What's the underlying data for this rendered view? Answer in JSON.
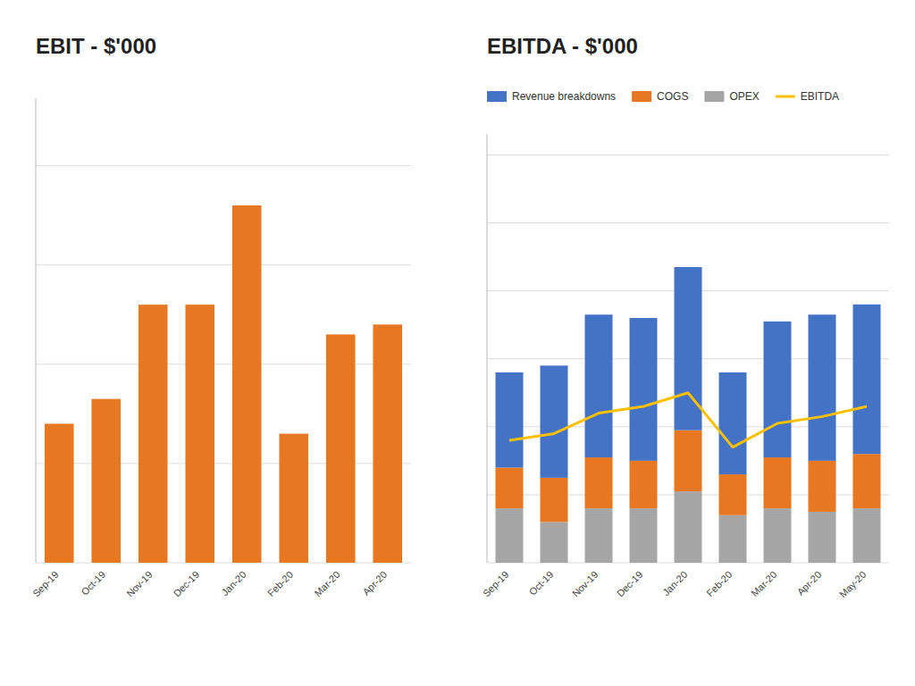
{
  "chart_data": [
    {
      "type": "bar",
      "title": "EBIT - $'000",
      "categories": [
        "Sep-19",
        "Oct-19",
        "Nov-19",
        "Dec-19",
        "Jan-20",
        "Feb-20",
        "Mar-20",
        "Apr-20"
      ],
      "values": [
        28,
        33,
        52,
        52,
        72,
        26,
        46,
        48
      ],
      "color": "#E87722",
      "ylim": [
        0,
        93.6
      ],
      "yticks": [
        0,
        20,
        40,
        60,
        80
      ],
      "grid": true,
      "tick_labels": "x"
    },
    {
      "type": "bar",
      "title": "EBITDA - $'000",
      "stacked": true,
      "categories": [
        "Sep-19",
        "Oct-19",
        "Nov-19",
        "Dec-19",
        "Jan-20",
        "Feb-20",
        "Mar-20",
        "Apr-20",
        "May-20"
      ],
      "series": [
        {
          "name": "Revenue breakdowns",
          "color": "#4472C4",
          "values": [
            28,
            33,
            42,
            42,
            48,
            30,
            40,
            43,
            44
          ]
        },
        {
          "name": "COGS",
          "color": "#E87722",
          "values": [
            12,
            13,
            15,
            14,
            18,
            12,
            15,
            15,
            16
          ]
        },
        {
          "name": "OPEX",
          "color": "#A6A6A6",
          "values": [
            16,
            12,
            16,
            16,
            21,
            14,
            16,
            15,
            16
          ]
        },
        {
          "name": "EBITDA",
          "type": "line",
          "color": "#FFC000",
          "values": [
            36,
            38,
            44,
            46,
            50,
            34,
            41,
            43,
            46
          ]
        }
      ],
      "ylim": [
        0,
        126.15
      ],
      "yticks": [
        0,
        20,
        40,
        60,
        80,
        100,
        120
      ],
      "grid": true,
      "tick_labels": "x",
      "legend": "top"
    }
  ]
}
